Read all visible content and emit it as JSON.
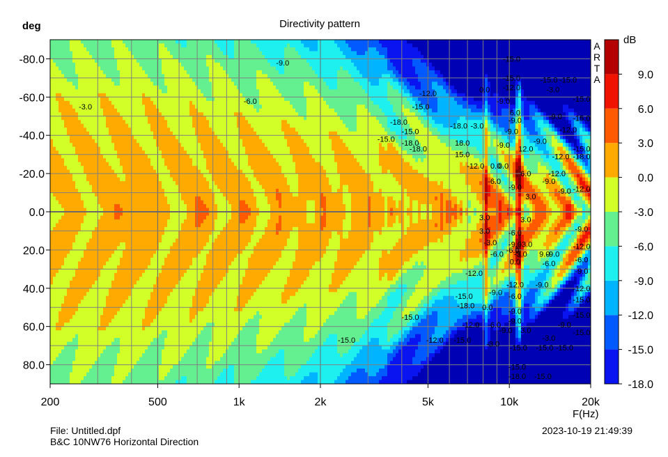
{
  "chart_data": {
    "type": "heatmap",
    "title": "Directivity pattern",
    "ylabel": "deg",
    "xlabel": "F(Hz)",
    "x_scale": "log",
    "xlim": [
      200,
      20000
    ],
    "ylim": [
      -90,
      90
    ],
    "x_ticks": [
      200,
      500,
      1000,
      2000,
      5000,
      10000,
      20000
    ],
    "x_tick_labels": [
      "200",
      "500",
      "1k",
      "2k",
      "5k",
      "10k",
      "20k"
    ],
    "y_ticks": [
      -80,
      -60,
      -40,
      -20,
      0,
      20,
      40,
      60,
      80
    ],
    "y_tick_labels": [
      "-80.0",
      "-60.0",
      "-40.0",
      "-20.0",
      "0.0",
      "20.0",
      "40.0",
      "60.0",
      "80.0"
    ],
    "colorbar": {
      "label": "dB",
      "range": [
        -18,
        12
      ],
      "step": 3,
      "tick_values": [
        9,
        6,
        3,
        0,
        -3,
        -6,
        -9,
        -12,
        -15,
        -18
      ],
      "tick_labels": [
        "9.0",
        "6.0",
        "3.0",
        "0.0",
        "-3.0",
        "-6.0",
        "-9.0",
        "-12.0",
        "-15.0",
        "-18.0"
      ],
      "colors": [
        "#0000b4",
        "#0a14f0",
        "#005aff",
        "#00b4ff",
        "#1ef0f0",
        "#64f090",
        "#d2ff28",
        "#ffaa00",
        "#ff5a00",
        "#f01400",
        "#b40000",
        "#780000"
      ]
    },
    "contour_labels": [
      {
        "f": 270,
        "a": -55,
        "t": "-3.0"
      },
      {
        "f": 1100,
        "a": -58,
        "t": "-6.0"
      },
      {
        "f": 1450,
        "a": -78,
        "t": "-9.0"
      },
      {
        "f": 5000,
        "a": -62,
        "t": "-12.0"
      },
      {
        "f": 4700,
        "a": -55,
        "t": "-15.0"
      },
      {
        "f": 3900,
        "a": -47,
        "t": "-18.0"
      },
      {
        "f": 6500,
        "a": -45,
        "t": "-18.0"
      },
      {
        "f": 4300,
        "a": -42,
        "t": "-15.0"
      },
      {
        "f": 4300,
        "a": -36,
        "t": "-18.0"
      },
      {
        "f": 3500,
        "a": -38,
        "t": "-15.0"
      },
      {
        "f": 4600,
        "a": -33,
        "t": "-18.0"
      },
      {
        "f": 6700,
        "a": -36,
        "t": "18.0"
      },
      {
        "f": 6700,
        "a": -30,
        "t": "15.0"
      },
      {
        "f": 7500,
        "a": -24,
        "t": "-12.0"
      },
      {
        "f": 8100,
        "a": -64,
        "t": "0.0"
      },
      {
        "f": 7600,
        "a": -45,
        "t": "-3.0"
      },
      {
        "f": 9500,
        "a": -58,
        "t": "-9.0"
      },
      {
        "f": 9500,
        "a": -35,
        "t": "-9.0"
      },
      {
        "f": 8900,
        "a": -24,
        "t": "0.0"
      },
      {
        "f": 9500,
        "a": -24,
        "t": "0.0"
      },
      {
        "f": 8800,
        "a": -16,
        "t": "-6.0"
      },
      {
        "f": 10200,
        "a": -42,
        "t": "-9.0"
      },
      {
        "f": 10500,
        "a": -52,
        "t": "6.0"
      },
      {
        "f": 11500,
        "a": -33,
        "t": "12.0"
      },
      {
        "f": 11500,
        "a": -20,
        "t": "6.0"
      },
      {
        "f": 10500,
        "a": -13,
        "t": "-9.0"
      },
      {
        "f": 12000,
        "a": -8,
        "t": "3.0"
      },
      {
        "f": 10200,
        "a": -80,
        "t": "-15.0"
      },
      {
        "f": 10200,
        "a": -70,
        "t": "-15.0"
      },
      {
        "f": 10200,
        "a": -65,
        "t": "-12.0"
      },
      {
        "f": 10500,
        "a": -48,
        "t": "-9.0"
      },
      {
        "f": 14000,
        "a": -69,
        "t": "-15.0"
      },
      {
        "f": 16500,
        "a": -69,
        "t": "-15.0"
      },
      {
        "f": 14500,
        "a": -64,
        "t": "-3.0"
      },
      {
        "f": 18500,
        "a": -59,
        "t": "-15.0"
      },
      {
        "f": 14800,
        "a": -50,
        "t": "-9.0"
      },
      {
        "f": 16500,
        "a": -43,
        "t": "-12.0"
      },
      {
        "f": 18500,
        "a": -49,
        "t": "-15.0"
      },
      {
        "f": 13000,
        "a": -37,
        "t": "-9.0"
      },
      {
        "f": 15500,
        "a": -29,
        "t": "-12.0"
      },
      {
        "f": 18500,
        "a": -33,
        "t": "-15.0"
      },
      {
        "f": 18500,
        "a": -29,
        "t": "-18.0"
      },
      {
        "f": 15000,
        "a": -20,
        "t": "-12.0"
      },
      {
        "f": 14000,
        "a": -16,
        "t": "-9.0"
      },
      {
        "f": 16000,
        "a": -11,
        "t": "-9.0"
      },
      {
        "f": 18500,
        "a": -12,
        "t": "-12.0"
      },
      {
        "f": 8100,
        "a": 3,
        "t": "3.0"
      },
      {
        "f": 8100,
        "a": 10,
        "t": "3.0"
      },
      {
        "f": 8500,
        "a": 16,
        "t": "-3.0"
      },
      {
        "f": 9000,
        "a": 22,
        "t": "-6.0"
      },
      {
        "f": 10500,
        "a": 11,
        "t": "-6.0"
      },
      {
        "f": 11500,
        "a": 4,
        "t": "3.0"
      },
      {
        "f": 11500,
        "a": 17,
        "t": "-3.0"
      },
      {
        "f": 10500,
        "a": 17,
        "t": "-9.0"
      },
      {
        "f": 10300,
        "a": 20,
        "t": "-6.0"
      },
      {
        "f": 10500,
        "a": 26,
        "t": "0.0"
      },
      {
        "f": 11000,
        "a": 22,
        "t": "-3.0"
      },
      {
        "f": 13500,
        "a": 22,
        "t": "9.0"
      },
      {
        "f": 14500,
        "a": 22,
        "t": "-9.0"
      },
      {
        "f": 14000,
        "a": 27,
        "t": "-6.0"
      },
      {
        "f": 18500,
        "a": 9,
        "t": "-9.0"
      },
      {
        "f": 18500,
        "a": 18,
        "t": "-12.0"
      },
      {
        "f": 18500,
        "a": 25,
        "t": "-6.0"
      },
      {
        "f": 18500,
        "a": 31,
        "t": "-9.0"
      },
      {
        "f": 7400,
        "a": 32,
        "t": "-12.0"
      },
      {
        "f": 6800,
        "a": 44,
        "t": "-15.0"
      },
      {
        "f": 6900,
        "a": 49,
        "t": "-18.0"
      },
      {
        "f": 8300,
        "a": 50,
        "t": "0.0"
      },
      {
        "f": 8900,
        "a": 42,
        "t": "-9.0"
      },
      {
        "f": 7200,
        "a": 59,
        "t": "-12.0"
      },
      {
        "f": 8800,
        "a": 59,
        "t": "-6.0"
      },
      {
        "f": 9700,
        "a": 62,
        "t": "-9.0"
      },
      {
        "f": 10500,
        "a": 52,
        "t": "-9.0"
      },
      {
        "f": 10500,
        "a": 44,
        "t": "-6.0"
      },
      {
        "f": 10500,
        "a": 38,
        "t": "-12.0"
      },
      {
        "f": 13200,
        "a": 38,
        "t": "-9.0"
      },
      {
        "f": 10500,
        "a": 57,
        "t": "-9.0"
      },
      {
        "f": 11500,
        "a": 62,
        "t": "3.0"
      },
      {
        "f": 16000,
        "a": 59,
        "t": "-9.0"
      },
      {
        "f": 18500,
        "a": 40,
        "t": "-12.0"
      },
      {
        "f": 18500,
        "a": 46,
        "t": "-15.0"
      },
      {
        "f": 18500,
        "a": 54,
        "t": "-15.0"
      },
      {
        "f": 18500,
        "a": 63,
        "t": "-15.0"
      },
      {
        "f": 14000,
        "a": 66,
        "t": "-3.0"
      },
      {
        "f": 13500,
        "a": 71,
        "t": "-15.0"
      },
      {
        "f": 16000,
        "a": 71,
        "t": "-15.0"
      },
      {
        "f": 10800,
        "a": 71,
        "t": "-15.0"
      },
      {
        "f": 8700,
        "a": 69,
        "t": "-3.0"
      },
      {
        "f": 4300,
        "a": 55,
        "t": "-15.0"
      },
      {
        "f": 2500,
        "a": 67,
        "t": "-15.0"
      },
      {
        "f": 5300,
        "a": 67,
        "t": "-12.0"
      },
      {
        "f": 6700,
        "a": 67,
        "t": "-15.0"
      },
      {
        "f": 10700,
        "a": 81,
        "t": "-15.0"
      },
      {
        "f": 10700,
        "a": 86,
        "t": "-18.0"
      },
      {
        "f": 13300,
        "a": 86,
        "t": "-15.0"
      }
    ]
  },
  "watermark": "ARTA",
  "footer": {
    "file": "File: Untitled.dpf",
    "description": "B&C 10NW76 Horizontal Direction",
    "timestamp": "2023-10-19  21:49:39"
  }
}
